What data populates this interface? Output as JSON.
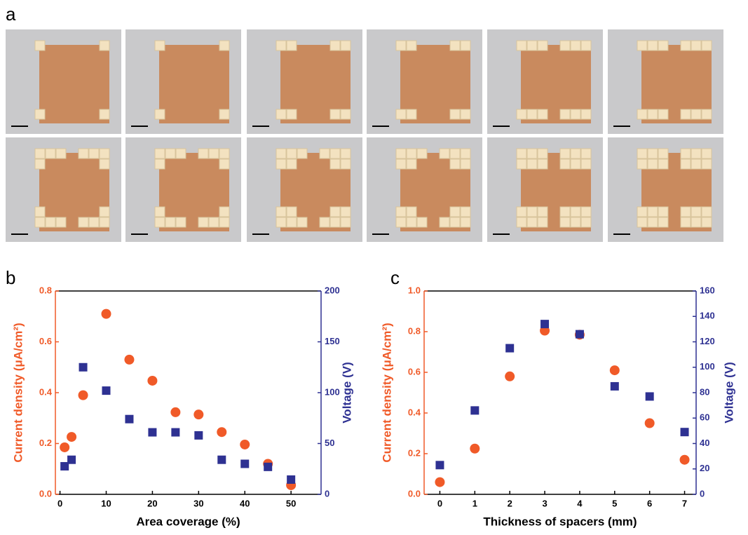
{
  "panel_labels": [
    "a",
    "b",
    "c"
  ],
  "chart_data": [
    {
      "type": "scatter",
      "xlabel": "Area coverage (%)",
      "ylabel": "Current density (μA/cm²)",
      "y2label": "Voltage (V)",
      "x": [
        1,
        2.5,
        5,
        10,
        15,
        20,
        25,
        30,
        35,
        40,
        45,
        50
      ],
      "series": [
        {
          "color": "#f05a28",
          "marker": "circle",
          "values": [
            0.185,
            0.226,
            0.39,
            0.71,
            0.53,
            0.447,
            0.323,
            0.314,
            0.245,
            0.196,
            0.12,
            0.036
          ]
        },
        {
          "color": "#2e3192",
          "marker": "square",
          "axis": "y2",
          "values": [
            27.6,
            34,
            125,
            102,
            74,
            61,
            61,
            58,
            34,
            30,
            27,
            14.5
          ]
        }
      ],
      "xlim": [
        -1,
        56.5
      ],
      "xticks": [
        0,
        10,
        20,
        30,
        40,
        50
      ],
      "ylim": [
        0,
        0.8
      ],
      "yticks": [
        {
          "value": 0,
          "label": "0.0"
        },
        0.2,
        0.4,
        0.6,
        0.8
      ],
      "y2lim": [
        0,
        200
      ],
      "y2ticks": [
        0,
        50,
        100,
        150,
        200
      ]
    },
    {
      "type": "scatter",
      "xlabel": "Thickness of spacers (mm)",
      "ylabel": "Current density (μA/cm²)",
      "y2label": "Voltage (V)",
      "x": [
        0,
        1,
        2,
        3,
        4,
        5,
        6,
        7
      ],
      "series": [
        {
          "color": "#f05a28",
          "marker": "circle",
          "values": [
            0.06,
            0.225,
            0.58,
            0.805,
            0.785,
            0.61,
            0.35,
            0.17
          ]
        },
        {
          "color": "#2e3192",
          "marker": "square",
          "axis": "y2",
          "values": [
            23,
            66,
            115,
            134,
            126,
            85,
            77,
            49
          ]
        }
      ],
      "xlim": [
        -0.45,
        7.33
      ],
      "xticks": [
        0,
        1,
        2,
        3,
        4,
        5,
        6,
        7
      ],
      "ylim": [
        0,
        1
      ],
      "yticks": [
        {
          "value": 0,
          "label": "0.0"
        },
        0.2,
        0.4,
        0.6,
        0.8,
        {
          "value": 1,
          "label": "1.0"
        }
      ],
      "y2lim": [
        0,
        160
      ],
      "y2ticks": [
        0,
        20,
        40,
        60,
        80,
        100,
        120,
        140,
        160
      ]
    }
  ]
}
